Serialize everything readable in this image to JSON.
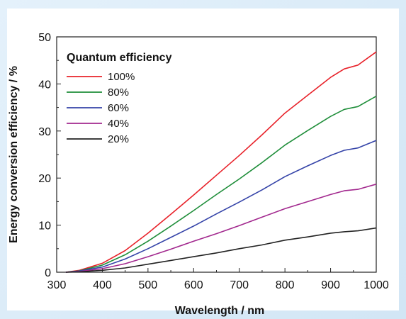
{
  "chart_data": {
    "type": "line",
    "xlabel": "Wavelength / nm",
    "ylabel": "Energy conversion efficiency / %",
    "xlim": [
      300,
      1000
    ],
    "ylim": [
      0,
      50
    ],
    "xticks": [
      300,
      400,
      500,
      600,
      700,
      800,
      900,
      1000
    ],
    "yticks": [
      0,
      10,
      20,
      30,
      40,
      50
    ],
    "grid": false,
    "legend": {
      "title": "Quantum efficiency",
      "position": "top-left"
    },
    "x": [
      320,
      350,
      400,
      450,
      500,
      550,
      600,
      650,
      700,
      750,
      800,
      850,
      900,
      930,
      960,
      1000
    ],
    "series": [
      {
        "name": "100%",
        "color": "#e8222a",
        "values": [
          0,
          0.4,
          1.9,
          4.6,
          8.3,
          12.3,
          16.4,
          20.6,
          24.8,
          29.2,
          33.8,
          37.6,
          41.4,
          43.2,
          44.0,
          46.8
        ]
      },
      {
        "name": "80%",
        "color": "#1f8e3a",
        "values": [
          0,
          0.3,
          1.5,
          3.7,
          6.6,
          9.8,
          13.1,
          16.5,
          19.8,
          23.3,
          27.0,
          30.1,
          33.1,
          34.6,
          35.2,
          37.4
        ]
      },
      {
        "name": "60%",
        "color": "#3443a8",
        "values": [
          0,
          0.25,
          1.1,
          2.8,
          5.0,
          7.4,
          9.8,
          12.4,
          14.9,
          17.5,
          20.3,
          22.6,
          24.8,
          25.9,
          26.4,
          28.0
        ]
      },
      {
        "name": "40%",
        "color": "#a2288e",
        "values": [
          0,
          0.15,
          0.75,
          1.8,
          3.3,
          4.9,
          6.6,
          8.2,
          9.9,
          11.7,
          13.5,
          15.0,
          16.5,
          17.3,
          17.6,
          18.7
        ]
      },
      {
        "name": "20%",
        "color": "#222222",
        "values": [
          0,
          0.08,
          0.4,
          0.9,
          1.7,
          2.5,
          3.3,
          4.1,
          5.0,
          5.8,
          6.8,
          7.5,
          8.3,
          8.6,
          8.8,
          9.4
        ]
      }
    ]
  }
}
